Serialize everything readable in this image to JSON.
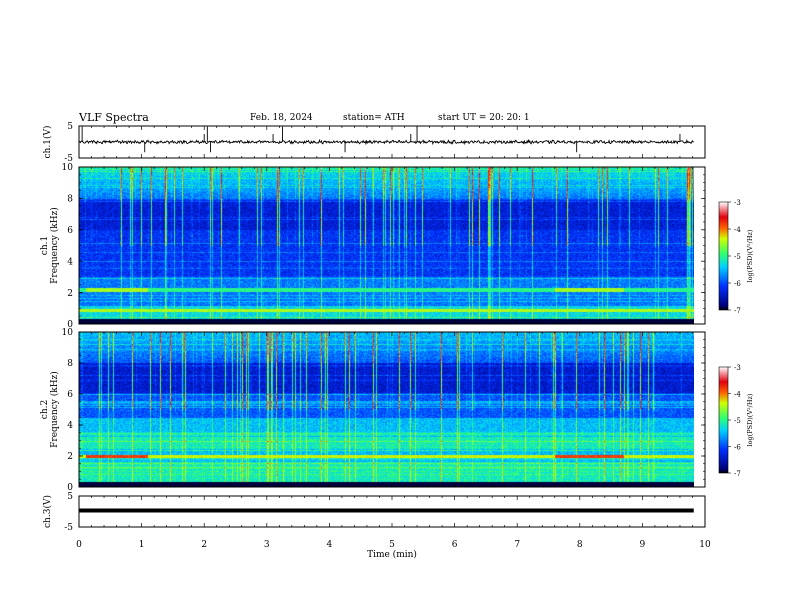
{
  "header": {
    "title": "VLF  Spectra",
    "date": "Feb. 18, 2024",
    "station": "station= ATH",
    "start": "start  UT  =    20: 20: 1"
  },
  "chart_data": [
    {
      "type": "line",
      "name": "ch1-waveform",
      "ylabel": "ch.1(V)",
      "ylim": [
        -5,
        5
      ],
      "yticks": [
        5,
        -5
      ],
      "xlim": [
        0,
        10
      ],
      "baseline": 0,
      "noise_amplitude": 0.4,
      "spikes_min": [
        0.05,
        1.05,
        2.0,
        2.05,
        2.1,
        3.1,
        3.25,
        4.25,
        5.3,
        5.4,
        7.95,
        9.6
      ],
      "color": "#000000"
    },
    {
      "type": "heatmap",
      "name": "ch1-spectrogram",
      "ylabel": "ch.1\nFrequency (kHz)",
      "ylim": [
        0,
        10
      ],
      "yticks": [
        0,
        2,
        4,
        6,
        8,
        10
      ],
      "xlim": [
        0,
        10
      ],
      "colorbar": {
        "label": "log(PSD)(V²/Hz)",
        "range": [
          -7,
          -3
        ],
        "ticks": [
          -3,
          -4,
          -5,
          -6,
          -7
        ]
      },
      "band_khz": [
        2.1,
        2.3
      ],
      "band_intervals_min": [
        [
          0.1,
          1.1
        ],
        [
          7.6,
          8.7
        ]
      ]
    },
    {
      "type": "heatmap",
      "name": "ch2-spectrogram",
      "ylabel": "ch.2\nFrequency (kHz)",
      "ylim": [
        0,
        10
      ],
      "yticks": [
        0,
        2,
        4,
        6,
        8,
        10
      ],
      "xlim": [
        0,
        10
      ],
      "colorbar": {
        "label": "log(PSD)(V²/Hz)",
        "range": [
          -7,
          -3
        ],
        "ticks": [
          -3,
          -4,
          -5,
          -6,
          -7
        ]
      },
      "band_khz": [
        1.9,
        2.1
      ],
      "band_intervals_min": [
        [
          0.1,
          1.1
        ],
        [
          7.6,
          8.7
        ]
      ]
    },
    {
      "type": "line",
      "name": "ch3-waveform",
      "ylabel": "ch.3(V)",
      "ylim": [
        -5,
        5
      ],
      "yticks": [
        5,
        -5
      ],
      "xlim": [
        0,
        10
      ],
      "baseline": 0,
      "color": "#000000"
    }
  ],
  "xaxis": {
    "label": "Time  (min)",
    "ticks": [
      0,
      1,
      2,
      3,
      4,
      5,
      6,
      7,
      8,
      9,
      10
    ]
  }
}
